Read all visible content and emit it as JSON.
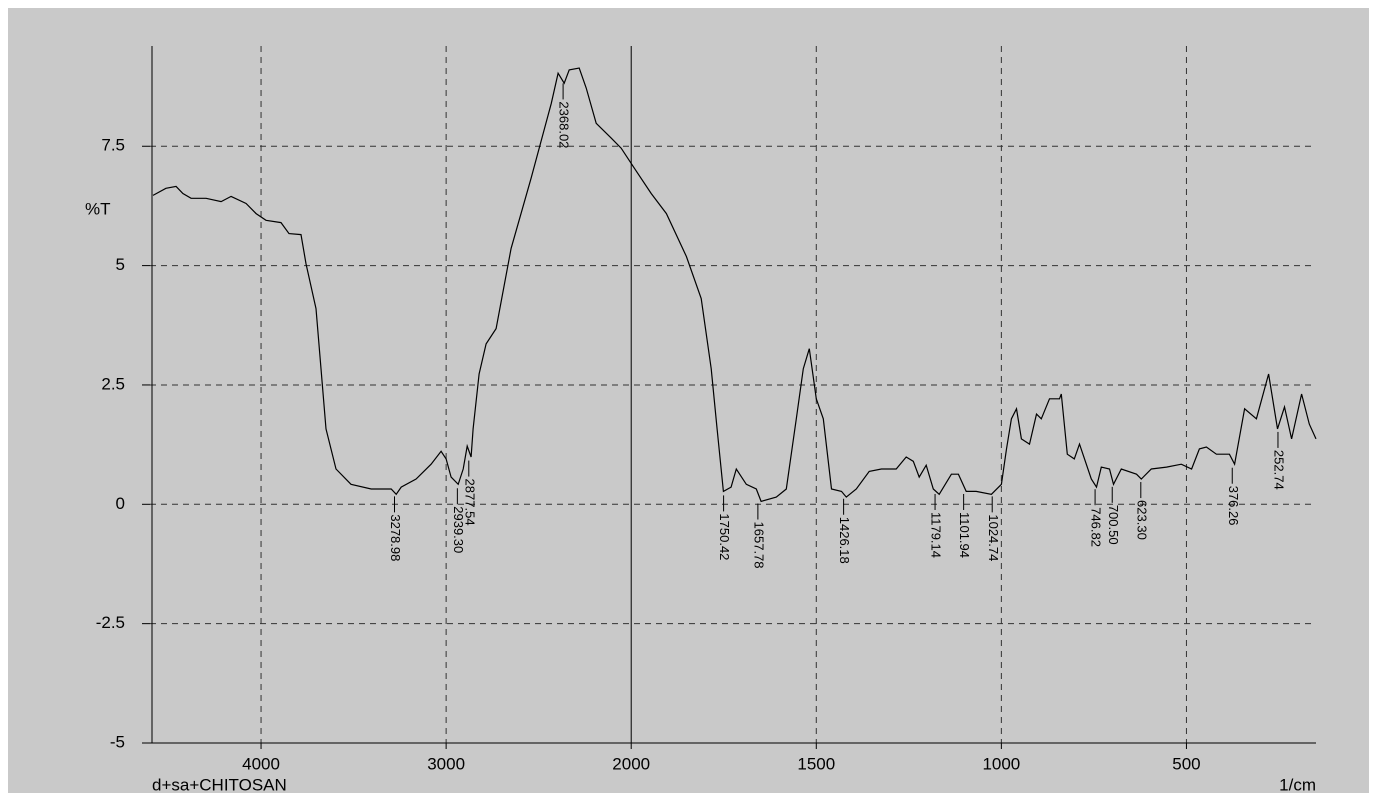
{
  "chart_data": {
    "type": "line",
    "ylabel": "%T",
    "sample": "d+sa+CHITOSAN",
    "xlabel": "1/cm",
    "color": "#000000",
    "grid": true,
    "xlim": [
      4600,
      150
    ],
    "xticks": [
      4000,
      3000,
      2000,
      1500,
      1000,
      500
    ],
    "ylim": [
      -5,
      9.6
    ],
    "yticks": [
      -5,
      -2.5,
      0,
      2.5,
      5,
      7.5
    ],
    "x": [
      4584,
      4514,
      4459,
      4422,
      4378,
      4297,
      4216,
      4162,
      4081,
      4027,
      3973,
      3892,
      3849,
      3784,
      3757,
      3703,
      3676,
      3649,
      3595,
      3514,
      3405,
      3297,
      3270,
      3243,
      3162,
      3081,
      3027,
      3000,
      2973,
      2935,
      2908,
      2886,
      2865,
      2854,
      2822,
      2784,
      2730,
      2649,
      2541,
      2432,
      2395,
      2362,
      2335,
      2281,
      2243,
      2189,
      2108,
      2054,
      1995,
      1946,
      1905,
      1851,
      1811,
      1784,
      1768,
      1751,
      1730,
      1716,
      1689,
      1662,
      1649,
      1608,
      1581,
      1554,
      1535,
      1519,
      1500,
      1481,
      1459,
      1432,
      1419,
      1392,
      1357,
      1324,
      1284,
      1257,
      1238,
      1222,
      1203,
      1184,
      1168,
      1135,
      1116,
      1095,
      1068,
      1027,
      1000,
      986,
      973,
      959,
      946,
      924,
      905,
      892,
      870,
      843,
      838,
      822,
      803,
      789,
      757,
      743,
      730,
      708,
      697,
      676,
      635,
      622,
      595,
      554,
      514,
      486,
      465,
      446,
      419,
      384,
      370,
      343,
      311,
      278,
      254,
      235,
      216,
      189,
      168,
      150
    ],
    "values": [
      6.47,
      6.62,
      6.66,
      6.51,
      6.41,
      6.41,
      6.34,
      6.45,
      6.3,
      6.09,
      5.95,
      5.9,
      5.67,
      5.65,
      5.04,
      4.1,
      2.84,
      1.58,
      0.74,
      0.42,
      0.32,
      0.32,
      0.21,
      0.36,
      0.53,
      0.84,
      1.11,
      0.95,
      0.57,
      0.42,
      0.74,
      1.22,
      0.99,
      1.58,
      2.73,
      3.36,
      3.68,
      5.36,
      6.83,
      8.4,
      9.03,
      8.82,
      9.1,
      9.14,
      8.72,
      7.98,
      7.67,
      7.46,
      7.08,
      6.51,
      6.09,
      5.19,
      4.31,
      2.84,
      1.58,
      0.27,
      0.36,
      0.74,
      0.42,
      0.32,
      0.06,
      0.15,
      0.32,
      1.79,
      2.84,
      3.26,
      2.21,
      1.79,
      0.32,
      0.27,
      0.15,
      0.32,
      0.69,
      0.74,
      0.74,
      0.99,
      0.9,
      0.57,
      0.82,
      0.32,
      0.21,
      0.63,
      0.63,
      0.27,
      0.27,
      0.21,
      0.42,
      1.16,
      1.79,
      2.0,
      1.37,
      1.26,
      1.89,
      1.79,
      2.21,
      2.21,
      2.31,
      1.05,
      0.95,
      1.26,
      0.53,
      0.36,
      0.78,
      0.74,
      0.42,
      0.74,
      0.63,
      0.53,
      0.74,
      0.78,
      0.84,
      0.74,
      1.16,
      1.2,
      1.05,
      1.05,
      0.84,
      2.0,
      1.79,
      2.73,
      1.58,
      2.04,
      1.37,
      2.31,
      1.68,
      1.37
    ],
    "peaks": {
      "x": [
        3278.98,
        2939.3,
        2877.54,
        2368.02,
        1750.42,
        1657.78,
        1426.18,
        1179.14,
        1101.94,
        1024.74,
        746.82,
        700.5,
        623.3,
        376.26,
        252.74
      ],
      "x_labels": [
        "3278.98",
        "2939.30",
        "2877.54",
        "2368.02",
        "1750.42",
        "1657.78",
        "1426.18",
        "1179.14",
        "1101.94",
        "1024.74",
        "746.82",
        "700.50",
        "623.30",
        "376.26",
        "252.74"
      ],
      "y": [
        0.25,
        0.42,
        1.0,
        8.9,
        0.27,
        0.1,
        0.2,
        0.3,
        0.3,
        0.25,
        0.4,
        0.45,
        0.55,
        0.85,
        1.6
      ]
    }
  }
}
